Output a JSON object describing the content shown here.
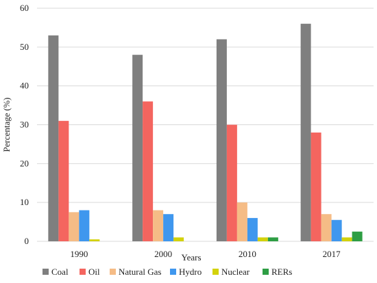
{
  "chart_data": {
    "type": "bar",
    "title": "",
    "xlabel": "Years",
    "ylabel": "Percentage (%)",
    "ylim": [
      0,
      60
    ],
    "yticks": [
      0,
      10,
      20,
      30,
      40,
      50,
      60
    ],
    "grid": "horizontal",
    "legend_position": "bottom",
    "categories": [
      "1990",
      "2000",
      "2010",
      "2017"
    ],
    "series": [
      {
        "name": "Coal",
        "color": "#7f7f7f",
        "values": [
          53,
          48,
          52,
          56
        ]
      },
      {
        "name": "Oil",
        "color": "#f4655f",
        "values": [
          31,
          36,
          30,
          28
        ]
      },
      {
        "name": "Natural Gas",
        "color": "#f5bc86",
        "values": [
          7.5,
          8,
          10,
          7
        ]
      },
      {
        "name": "Hydro",
        "color": "#3f97ee",
        "values": [
          8,
          7,
          6,
          5.5
        ]
      },
      {
        "name": "Nuclear",
        "color": "#d3d20b",
        "values": [
          0.5,
          1,
          1,
          1
        ]
      },
      {
        "name": "RERs",
        "color": "#2e9e44",
        "values": [
          0,
          0,
          1,
          2.5
        ]
      }
    ]
  }
}
